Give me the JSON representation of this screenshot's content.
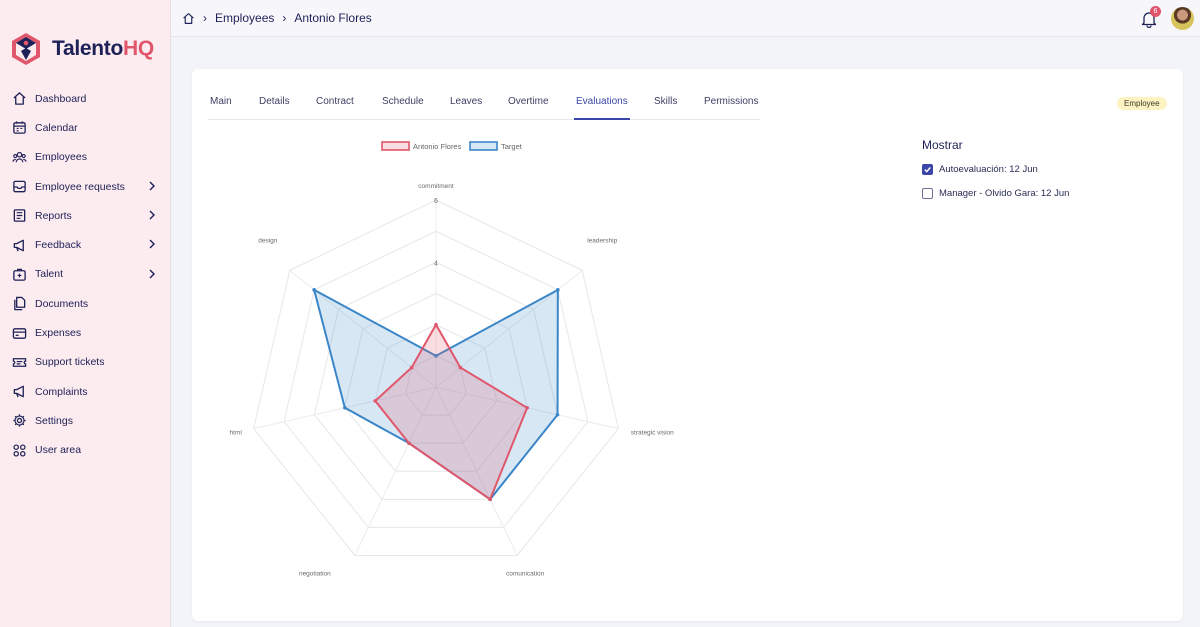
{
  "app": {
    "logo_text_1": "Talento",
    "logo_text_2": "HQ",
    "brand_color": "#e0566b",
    "navy": "#1d2157"
  },
  "sidebar": {
    "items": [
      {
        "label": "Dashboard",
        "icon": "home-icon",
        "expandable": false
      },
      {
        "label": "Calendar",
        "icon": "calendar-icon",
        "expandable": false
      },
      {
        "label": "Employees",
        "icon": "users-icon",
        "expandable": false
      },
      {
        "label": "Employee requests",
        "icon": "inbox-icon",
        "expandable": true
      },
      {
        "label": "Reports",
        "icon": "report-icon",
        "expandable": true
      },
      {
        "label": "Feedback",
        "icon": "megaphone-icon",
        "expandable": true
      },
      {
        "label": "Talent",
        "icon": "talent-icon",
        "expandable": true
      },
      {
        "label": "Documents",
        "icon": "documents-icon",
        "expandable": false
      },
      {
        "label": "Expenses",
        "icon": "card-icon",
        "expandable": false
      },
      {
        "label": "Support tickets",
        "icon": "ticket-icon",
        "expandable": false
      },
      {
        "label": "Complaints",
        "icon": "megaphone-icon",
        "expandable": false
      },
      {
        "label": "Settings",
        "icon": "gear-icon",
        "expandable": false
      },
      {
        "label": "User area",
        "icon": "grid-icon",
        "expandable": false
      }
    ]
  },
  "header": {
    "breadcrumb": [
      "Employees",
      "Antonio Flores"
    ],
    "notifications_count": "6"
  },
  "tabs": [
    {
      "label": "Main"
    },
    {
      "label": "Details"
    },
    {
      "label": "Contract"
    },
    {
      "label": "Schedule"
    },
    {
      "label": "Leaves"
    },
    {
      "label": "Overtime"
    },
    {
      "label": "Evaluations",
      "active": true
    },
    {
      "label": "Skills"
    },
    {
      "label": "Permissions"
    }
  ],
  "role_badge": "Employee",
  "filters": {
    "title": "Mostrar",
    "options": [
      {
        "label": "Autoevaluación: 12 Jun",
        "checked": true
      },
      {
        "label": "Manager - Olvido Gara: 12 Jun",
        "checked": false
      }
    ]
  },
  "chart_data": {
    "type": "radar",
    "axes": [
      "commitment",
      "leadership",
      "strategic vision",
      "comunication",
      "negotiation",
      "html",
      "design"
    ],
    "rlim": [
      0,
      6
    ],
    "tick_labels": [
      "4",
      "6"
    ],
    "grid": true,
    "legend_position": "top-center",
    "series": [
      {
        "name": "Antonio Flores",
        "color": "#e0566b",
        "values": [
          2,
          1,
          3,
          4,
          2,
          2,
          1
        ]
      },
      {
        "name": "Target",
        "color": "#3b86c8",
        "values": [
          1,
          5,
          4,
          4,
          2,
          3,
          5
        ]
      }
    ]
  }
}
